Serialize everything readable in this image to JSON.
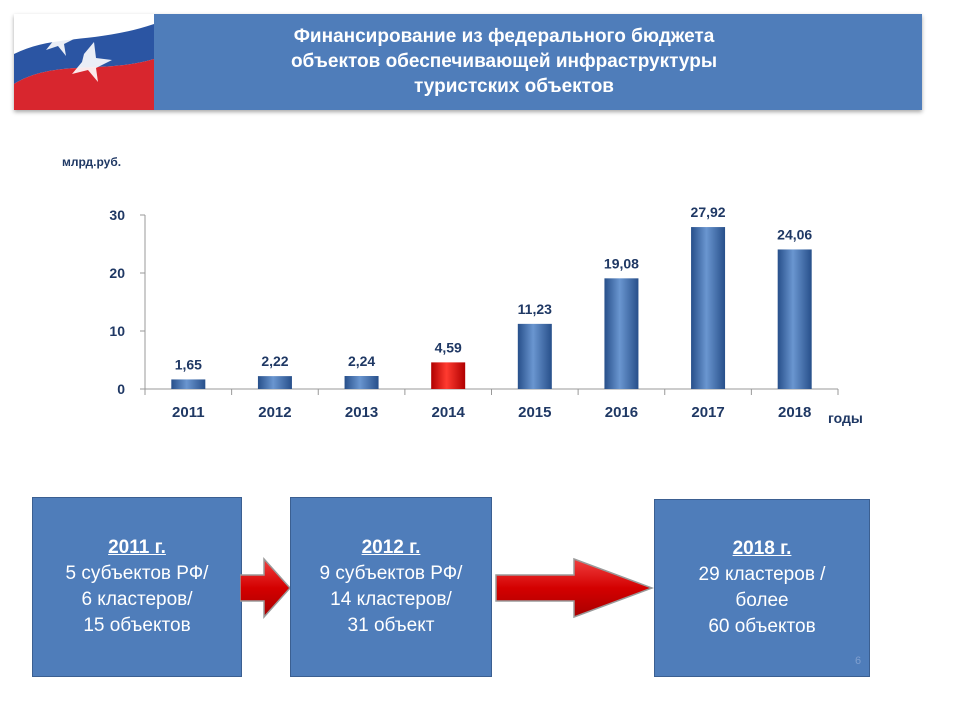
{
  "header": {
    "title_lines": [
      "Финансирование из федерального бюджета",
      "объектов обеспечивающей инфраструктуры",
      "туристских объектов"
    ]
  },
  "chart_data": {
    "type": "bar",
    "ylabel": "млрд.руб.",
    "xlabel": "годы",
    "categories": [
      "2011",
      "2012",
      "2013",
      "2014",
      "2015",
      "2016",
      "2017",
      "2018"
    ],
    "values": [
      1.65,
      2.22,
      2.24,
      4.59,
      11.23,
      19.08,
      27.92,
      24.06
    ],
    "value_labels": [
      "1,65",
      "2,22",
      "2,24",
      "4,59",
      "11,23",
      "19,08",
      "27,92",
      "24,06"
    ],
    "ylim": [
      0,
      30
    ],
    "yticks": [
      0,
      10,
      20,
      30
    ],
    "grid": false,
    "legend": "none",
    "colors": {
      "bar": "#3a68a8",
      "highlight": "#e0261e",
      "highlight_category": "2014",
      "label": "#1f3864"
    }
  },
  "boxes": [
    {
      "year": "2011 г.",
      "lines": [
        "5 субъектов РФ/",
        "6 кластеров/",
        "15 объектов"
      ]
    },
    {
      "year": "2012 г.",
      "lines": [
        "9 субъектов РФ/",
        "14 кластеров/",
        "31 объект"
      ]
    },
    {
      "year": "2018 г.",
      "lines": [
        "29 кластеров /",
        "более",
        "60 объектов"
      ]
    }
  ],
  "page_number": "6"
}
